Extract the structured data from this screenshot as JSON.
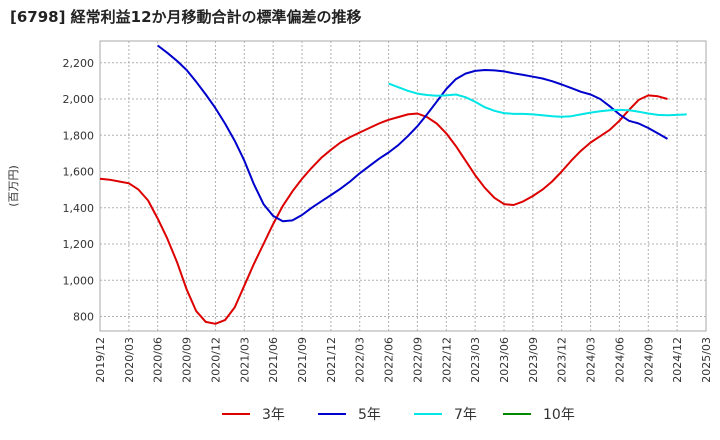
{
  "header": {
    "title": "[6798]  経常利益12か月移動合計の標準偏差の推移"
  },
  "chart_data": {
    "type": "line",
    "title": "[6798]  経常利益12か月移動合計の標準偏差の推移",
    "ylabel": "(百万円)",
    "xlabel": "",
    "ylim": [
      720,
      2320
    ],
    "yticks": [
      800,
      1000,
      1200,
      1400,
      1600,
      1800,
      2000,
      2200
    ],
    "ytick_labels": [
      "800",
      "1,000",
      "1,200",
      "1,400",
      "1,600",
      "1,800",
      "2,000",
      "2,200"
    ],
    "x_categories": [
      "2019/12",
      "2020/03",
      "2020/06",
      "2020/09",
      "2020/12",
      "2021/03",
      "2021/06",
      "2021/09",
      "2021/12",
      "2022/03",
      "2022/06",
      "2022/09",
      "2022/12",
      "2023/03",
      "2023/06",
      "2023/09",
      "2023/12",
      "2024/03",
      "2024/06",
      "2024/09",
      "2024/12",
      "2025/03"
    ],
    "grid": true,
    "legend_position": "bottom",
    "series": [
      {
        "name": "3年",
        "color": "#dd0000",
        "start_index": 0,
        "values": [
          1560,
          1555,
          1545,
          1535,
          1500,
          1440,
          1340,
          1230,
          1100,
          950,
          830,
          770,
          760,
          780,
          850,
          970,
          1090,
          1200,
          1310,
          1410,
          1490,
          1560,
          1620,
          1675,
          1720,
          1760,
          1790,
          1815,
          1840,
          1865,
          1885,
          1900,
          1915,
          1920,
          1900,
          1865,
          1810,
          1740,
          1660,
          1580,
          1510,
          1455,
          1420,
          1415,
          1435,
          1465,
          1500,
          1545,
          1600,
          1660,
          1715,
          1760,
          1795,
          1830,
          1880,
          1940,
          1995,
          2020,
          2015,
          2000
        ]
      },
      {
        "name": "5年",
        "color": "#0000cc",
        "start_index": 6,
        "values": [
          2295,
          2255,
          2210,
          2160,
          2095,
          2025,
          1950,
          1865,
          1770,
          1660,
          1530,
          1420,
          1355,
          1325,
          1330,
          1360,
          1400,
          1435,
          1470,
          1505,
          1545,
          1590,
          1630,
          1670,
          1705,
          1745,
          1795,
          1850,
          1915,
          1985,
          2055,
          2110,
          2140,
          2155,
          2160,
          2158,
          2152,
          2142,
          2133,
          2123,
          2113,
          2098,
          2080,
          2060,
          2040,
          2025,
          2000,
          1960,
          1915,
          1880,
          1865,
          1840,
          1810,
          1780
        ]
      },
      {
        "name": "7年",
        "color": "#00e5e5",
        "start_index": 30,
        "values": [
          2085,
          2065,
          2045,
          2030,
          2022,
          2018,
          2020,
          2025,
          2010,
          1985,
          1955,
          1935,
          1922,
          1918,
          1918,
          1915,
          1910,
          1905,
          1902,
          1905,
          1915,
          1925,
          1932,
          1938,
          1940,
          1938,
          1930,
          1920,
          1912,
          1910,
          1912,
          1915
        ]
      },
      {
        "name": "10年",
        "color": "#008800",
        "start_index": 0,
        "values": []
      }
    ]
  }
}
